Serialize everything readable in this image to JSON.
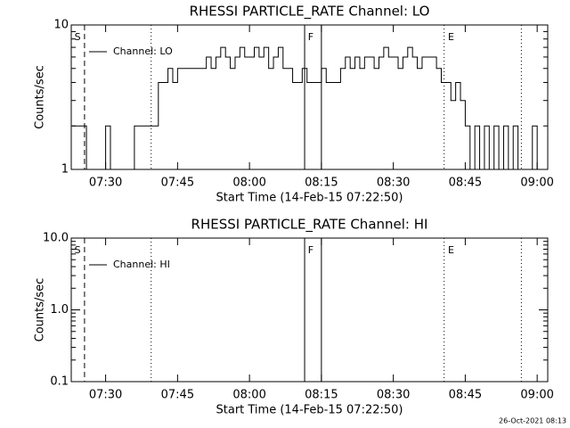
{
  "chart_data": [
    {
      "type": "line",
      "title": "RHESSI PARTICLE_RATE Channel: LO",
      "xlabel": "Start Time (14-Feb-15 07:22:50)",
      "ylabel": "Counts/sec",
      "log_y": true,
      "xlim": [
        442.83,
        542.2
      ],
      "ylim": [
        1,
        10
      ],
      "xticks": [
        {
          "value": 450,
          "label": "07:30"
        },
        {
          "value": 465,
          "label": "07:45"
        },
        {
          "value": 480,
          "label": "08:00"
        },
        {
          "value": 495,
          "label": "08:15"
        },
        {
          "value": 510,
          "label": "08:30"
        },
        {
          "value": 525,
          "label": "08:45"
        },
        {
          "value": 540,
          "label": "09:00"
        }
      ],
      "yticks": [
        1,
        10
      ],
      "yminorticks": [
        2,
        3,
        4,
        5,
        6,
        7,
        8,
        9
      ],
      "vlines": [
        {
          "x": 445.6,
          "style": "dashed"
        },
        {
          "x": 459.5,
          "style": "dotted"
        },
        {
          "x": 491.5,
          "style": "solid"
        },
        {
          "x": 495,
          "style": "solid"
        },
        {
          "x": 520.6,
          "style": "dotted"
        },
        {
          "x": 536.7,
          "style": "dotted"
        }
      ],
      "annotations": [
        {
          "label": "S",
          "x": 443.5
        },
        {
          "label": "F",
          "x": 492.2
        },
        {
          "label": "E",
          "x": 521.4
        }
      ],
      "x": [
        443,
        444,
        445,
        446,
        447,
        448,
        449,
        450,
        451,
        452,
        453,
        454,
        455,
        456,
        457,
        458,
        459,
        460,
        461,
        462,
        463,
        464,
        465,
        466,
        467,
        468,
        469,
        470,
        471,
        472,
        473,
        474,
        475,
        476,
        477,
        478,
        479,
        480,
        481,
        482,
        483,
        484,
        485,
        486,
        487,
        488,
        489,
        490,
        491,
        492,
        493,
        494,
        495,
        496,
        497,
        498,
        499,
        500,
        501,
        502,
        503,
        504,
        505,
        506,
        507,
        508,
        509,
        510,
        511,
        512,
        513,
        514,
        515,
        516,
        517,
        518,
        519,
        520,
        521,
        522,
        523,
        524,
        525,
        526,
        527,
        528,
        529,
        530,
        531,
        532,
        533,
        534,
        535,
        536,
        537,
        538,
        539,
        540,
        541,
        542
      ],
      "series": [
        {
          "name": "Channel: LO",
          "color": "#000000",
          "values": [
            2,
            2,
            2,
            1,
            1,
            1,
            1,
            2,
            1,
            1,
            1,
            1,
            1,
            2,
            2,
            2,
            2,
            2,
            4,
            4,
            5,
            4,
            5,
            5,
            5,
            5,
            5,
            5,
            6,
            5,
            6,
            7,
            6,
            5,
            6,
            7,
            6,
            6,
            7,
            6,
            7,
            5,
            6,
            7,
            5,
            5,
            4,
            4,
            5,
            4,
            4,
            4,
            5,
            4,
            4,
            4,
            5,
            6,
            5,
            6,
            5,
            6,
            6,
            5,
            6,
            7,
            6,
            6,
            5,
            6,
            7,
            6,
            5,
            6,
            6,
            6,
            5,
            4,
            4,
            3,
            4,
            3,
            2,
            1,
            2,
            1,
            2,
            1,
            2,
            1,
            2,
            1,
            2,
            1,
            1,
            1,
            2,
            1,
            1,
            1
          ]
        }
      ]
    },
    {
      "type": "line",
      "title": "RHESSI PARTICLE_RATE Channel: HI",
      "xlabel": "Start Time (14-Feb-15 07:22:50)",
      "ylabel": "Counts/sec",
      "log_y": true,
      "xlim": [
        442.83,
        542.2
      ],
      "ylim": [
        0.1,
        10
      ],
      "xticks": [
        {
          "value": 450,
          "label": "07:30"
        },
        {
          "value": 465,
          "label": "07:45"
        },
        {
          "value": 480,
          "label": "08:00"
        },
        {
          "value": 495,
          "label": "08:15"
        },
        {
          "value": 510,
          "label": "08:30"
        },
        {
          "value": 525,
          "label": "08:45"
        },
        {
          "value": 540,
          "label": "09:00"
        }
      ],
      "yticks": [
        0.1,
        {
          "value": 1,
          "label": "1.0"
        },
        {
          "value": 10,
          "label": "10.0"
        }
      ],
      "yminorticks": [
        0.2,
        0.3,
        0.4,
        0.5,
        0.6,
        0.7,
        0.8,
        0.9,
        2,
        3,
        4,
        5,
        6,
        7,
        8,
        9
      ],
      "vlines": [
        {
          "x": 445.6,
          "style": "dashed"
        },
        {
          "x": 459.5,
          "style": "dotted"
        },
        {
          "x": 491.5,
          "style": "solid"
        },
        {
          "x": 495,
          "style": "solid"
        },
        {
          "x": 520.6,
          "style": "dotted"
        },
        {
          "x": 536.7,
          "style": "dotted"
        }
      ],
      "annotations": [
        {
          "label": "S",
          "x": 443.5
        },
        {
          "label": "F",
          "x": 492.2
        },
        {
          "label": "E",
          "x": 521.4
        }
      ],
      "x": [],
      "series": [
        {
          "name": "Channel: HI",
          "color": "#000000",
          "values": []
        }
      ]
    }
  ],
  "footer": "26-Oct-2021 08:13"
}
